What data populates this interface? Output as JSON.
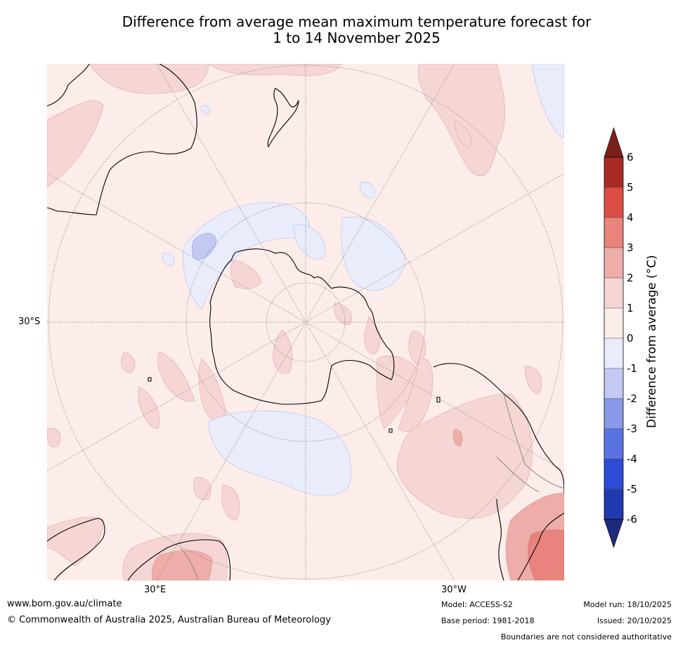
{
  "title": {
    "line1": "Difference from average mean maximum temperature forecast for",
    "line2": "1 to 14 November 2025"
  },
  "map": {
    "projection_center": "South Pole",
    "lat_label": "30°S",
    "lon_labels": {
      "east": "30°E",
      "west": "30°W"
    }
  },
  "colorbar": {
    "label": "Difference from average (°C)",
    "ticks": [
      "6",
      "5",
      "4",
      "3",
      "2",
      "1",
      "0",
      "-1",
      "-2",
      "-3",
      "-4",
      "-5",
      "-6"
    ],
    "colors_top_to_bottom": [
      "#a82a25",
      "#dc4d43",
      "#e8847d",
      "#eeada8",
      "#f5d6d5",
      "#fcecea",
      "#e9ecfb",
      "#c3c9f2",
      "#8899ea",
      "#5a72e2",
      "#2e4ad8",
      "#2339b0"
    ],
    "extend_max_color": "#7a1f1a",
    "extend_min_color": "#1f2a7c"
  },
  "footer": {
    "website": "www.bom.gov.au/climate",
    "copyright": "© Commonwealth of Australia 2025, Australian Bureau of Meteorology",
    "model": "Model: ACCESS-S2",
    "base_period": "Base period: 1981-2018",
    "model_run": "Model run: 18/10/2025",
    "issued": "Issued: 20/10/2025",
    "disclaimer": "Boundaries are not considered authoritative"
  }
}
